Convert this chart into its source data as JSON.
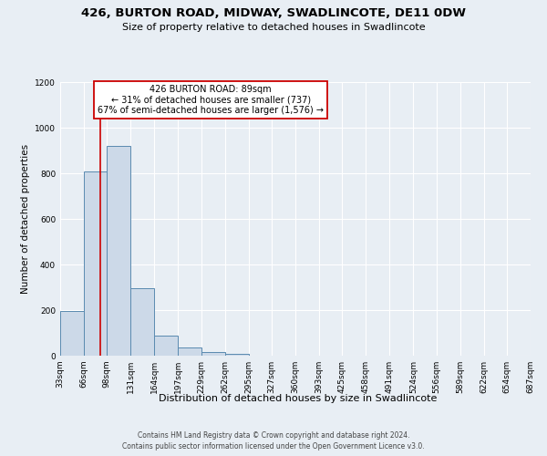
{
  "title": "426, BURTON ROAD, MIDWAY, SWADLINCOTE, DE11 0DW",
  "subtitle": "Size of property relative to detached houses in Swadlincote",
  "xlabel": "Distribution of detached houses by size in Swadlincote",
  "ylabel": "Number of detached properties",
  "bin_edges": [
    33,
    66,
    98,
    131,
    164,
    197,
    229,
    262,
    295,
    327,
    360,
    393,
    425,
    458,
    491,
    524,
    556,
    589,
    622,
    654,
    687
  ],
  "bin_labels": [
    "33sqm",
    "66sqm",
    "98sqm",
    "131sqm",
    "164sqm",
    "197sqm",
    "229sqm",
    "262sqm",
    "295sqm",
    "327sqm",
    "360sqm",
    "393sqm",
    "425sqm",
    "458sqm",
    "491sqm",
    "524sqm",
    "556sqm",
    "589sqm",
    "622sqm",
    "654sqm",
    "687sqm"
  ],
  "bar_heights": [
    195,
    810,
    920,
    295,
    90,
    35,
    18,
    10,
    0,
    0,
    0,
    0,
    0,
    0,
    0,
    0,
    0,
    0,
    0,
    0
  ],
  "bar_color": "#ccd9e8",
  "bar_edge_color": "#5a8ab0",
  "vline_x": 89,
  "vline_color": "#cc0000",
  "ylim": [
    0,
    1200
  ],
  "yticks": [
    0,
    200,
    400,
    600,
    800,
    1000,
    1200
  ],
  "annotation_line1": "426 BURTON ROAD: 89sqm",
  "annotation_line2": "← 31% of detached houses are smaller (737)",
  "annotation_line3": "67% of semi-detached houses are larger (1,576) →",
  "annotation_box_color": "#ffffff",
  "annotation_box_edge_color": "#cc0000",
  "footer_line1": "Contains HM Land Registry data © Crown copyright and database right 2024.",
  "footer_line2": "Contains public sector information licensed under the Open Government Licence v3.0.",
  "background_color": "#e8eef4",
  "plot_background_color": "#e8eef4",
  "grid_color": "#ffffff",
  "title_fontsize": 9.5,
  "subtitle_fontsize": 8,
  "xlabel_fontsize": 8,
  "ylabel_fontsize": 7.5,
  "tick_fontsize": 6.5,
  "ann_fontsize": 7,
  "footer_fontsize": 5.5
}
